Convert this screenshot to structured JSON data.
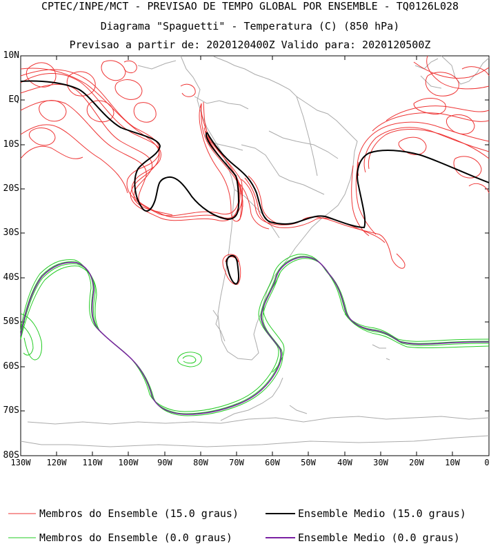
{
  "header": {
    "line1": "CPTEC/INPE/MCT - PREVISAO DE TEMPO GLOBAL POR ENSEMBLE - TQ0126L028",
    "line2": "Diagrama \"Spaguetti\" - Temperatura (C) (850 hPa)",
    "line3": "Previsao a partir de: 2020120400Z  Valido para: 2020120500Z"
  },
  "map": {
    "lat_labels": [
      "10N",
      "EQ",
      "10S",
      "20S",
      "30S",
      "40S",
      "50S",
      "60S",
      "70S",
      "80S"
    ],
    "lon_labels": [
      "130W",
      "120W",
      "110W",
      "100W",
      "90W",
      "80W",
      "70W",
      "60W",
      "50W",
      "40W",
      "30W",
      "20W",
      "10W",
      "0"
    ]
  },
  "legend": {
    "red_members": "Membros do Ensemble (15.0 graus)",
    "black_mean": "Ensemble Medio (15.0 graus)",
    "green_members": "Membros do Ensemble (0.0 graus)",
    "purple_mean": "Ensemble Medio (0.0 graus)"
  },
  "colors": {
    "red": "#ee3333",
    "black": "#000000",
    "green": "#22cc22",
    "purple": "#7a1fa2",
    "coast": "#aaaaaa"
  }
}
